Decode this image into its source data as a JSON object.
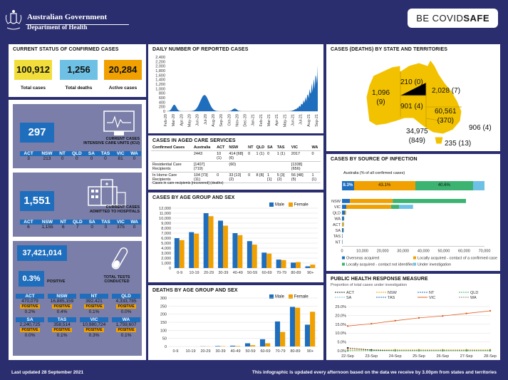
{
  "header": {
    "gov_line1": "Australian Government",
    "gov_line2": "Department of Health",
    "badge_prefix": "BE COVID",
    "badge_suffix": "SAFE"
  },
  "current_status": {
    "title": "CURRENT STATUS OF CONFIRMED CASES",
    "total_cases": "100,912",
    "total_cases_label": "Total cases",
    "total_deaths": "1,256",
    "total_deaths_label": "Total deaths",
    "active_cases": "20,284",
    "active_cases_label": "Active cases",
    "colors": {
      "total": "#f2de3a",
      "deaths": "#6ec1e4",
      "active": "#f0a000"
    }
  },
  "icu": {
    "value": "297",
    "label1": "CURRENT CASES",
    "label2": "INTENSIVE CARE UNITS (ICU)",
    "states": [
      "ACT",
      "NSW",
      "NT",
      "QLD",
      "SA",
      "TAS",
      "VIC",
      "WA"
    ],
    "values": [
      "3",
      "213",
      "0",
      "0",
      "0",
      "0",
      "81",
      "0"
    ]
  },
  "hospital": {
    "value": "1,551",
    "label1": "CURRENT CASES",
    "label2": "ADMITTED TO HOSPITALS",
    "states": [
      "ACT",
      "NSW",
      "NT",
      "QLD",
      "SA",
      "TAS",
      "VIC",
      "WA"
    ],
    "values": [
      "6",
      "1,155",
      "6",
      "7",
      "0",
      "0",
      "375",
      "0"
    ]
  },
  "tests": {
    "value": "37,421,014",
    "positive_pct": "0.3%",
    "positive_label": "POSITIVE",
    "label1": "TOTAL TESTS",
    "label2": "CONDUCTED",
    "positive_tag": "POSITIVE",
    "rows": [
      {
        "states": [
          "ACT",
          "NSW",
          "NT",
          "QLD"
        ],
        "tests": [
          "470,079",
          "16,885,159",
          "392,421",
          "4,333,785"
        ],
        "pct": [
          "0.2%",
          "0.4%",
          "0.1%",
          "0.0%"
        ]
      },
      {
        "states": [
          "SA",
          "TAS",
          "VIC",
          "WA"
        ],
        "tests": [
          "2,240,725",
          "358,514",
          "10,980,724",
          "1,759,607"
        ],
        "pct": [
          "0.0%",
          "0.1%",
          "0.3%",
          "0.1%"
        ]
      }
    ]
  },
  "daily": {
    "title": "DAILY NUMBER OF REPORTED CASES",
    "yticks": [
      "2,400",
      "2,200",
      "2,000",
      "1,800",
      "1,600",
      "1,400",
      "1,200",
      "1,000",
      "800",
      "600",
      "400",
      "200",
      "0"
    ],
    "xticks": [
      "Feb-20",
      "Mar-20",
      "Apr-20",
      "May-20",
      "Jun-20",
      "Jul-20",
      "Aug-20",
      "Sep-20",
      "Oct-20",
      "Nov-20",
      "Dec-20",
      "Jan-21",
      "Feb-21",
      "Mar-21",
      "Apr-21",
      "May-21",
      "Jun-21",
      "Jul-21",
      "Aug-21",
      "Sep-21"
    ]
  },
  "aged": {
    "title": "CASES IN AGED CARE SERVICES",
    "headers": [
      "Confirmed Cases",
      "Australia",
      "ACT",
      "NSW",
      "NT",
      "QLD",
      "SA",
      "TAS",
      "VIC",
      "WA"
    ],
    "rows": [
      [
        "",
        "2443",
        "10 (1)",
        "414 [68] (6)",
        "0",
        "1 (1)",
        "0",
        "1 (1)",
        "2017",
        "0"
      ],
      [
        "Residential Care Recipients",
        "[1407] (719)",
        "",
        "(60)",
        "",
        "",
        "",
        "",
        "[1338] (656)",
        ""
      ],
      [
        "In Home Care Recipients",
        "104 [73] (11)",
        "0",
        "33 [13] (2)",
        "0",
        "8 [8]",
        "1 [1]",
        "5 [3] (2)",
        "56 [48] (5)",
        "1 (1)"
      ]
    ],
    "note": "Cases in care recipients [recovered] (deaths)"
  },
  "age_cases": {
    "title": "CASES BY AGE GROUP AND SEX",
    "legend_male": "Male",
    "legend_female": "Female"
  },
  "age_deaths": {
    "title": "DEATHS BY AGE GROUP AND SEX",
    "legend_male": "Male",
    "legend_female": "Female"
  },
  "states_map": {
    "title": "CASES (DEATHS) BY STATE AND TERRITORIES",
    "wa": "1,096",
    "wa_d": "(9)",
    "nt": "210 (0)",
    "qld": "2,028 (7)",
    "sa": "901 (4)",
    "nsw": "60,561",
    "nsw_d": "(370)",
    "act": "906 (4)",
    "vic": "34,975",
    "vic_d": "(849)",
    "tas": "235 (13)"
  },
  "source": {
    "title": "CASES BY SOURCE OF INFECTION",
    "subtitle": "Australia (% of all confirmed cases)",
    "pct_overseas": "8.3%",
    "pct_contact": "43.1%",
    "pct_unknown": "40.6%",
    "states": [
      "NSW",
      "VIC",
      "QLD",
      "WA",
      "ACT",
      "SA",
      "TAS",
      "NT"
    ],
    "xticks": [
      "0",
      "10,000",
      "20,000",
      "30,000",
      "40,000",
      "50,000",
      "60,000",
      "70,000"
    ],
    "legend": [
      "Overseas acquired",
      "Locally acquired - contact of a confirmed case",
      "Locally acquired - contact not identified",
      "Under investigation"
    ]
  },
  "public_health": {
    "title": "PUBLIC HEALTH RESPONSE MEASURE",
    "subtitle": "Proportion of total cases under investigation",
    "legend": [
      "ACT",
      "NSW",
      "NT",
      "QLD",
      "SA",
      "TAS",
      "VIC",
      "WA"
    ],
    "yticks": [
      "25.0%",
      "20.0%",
      "15.0%",
      "10.0%",
      "5.0%",
      "0.0%"
    ],
    "xticks": [
      "22-Sep",
      "23-Sep",
      "24-Sep",
      "25-Sep",
      "26-Sep",
      "27-Sep",
      "28-Sep"
    ]
  },
  "footer": {
    "left": "Last updated 28 September 2021",
    "right": "This infographic is updated every afternoon based on the data we receive by 3.00pm from states and territories"
  },
  "chart_data": [
    {
      "type": "bar",
      "title": "CASES BY AGE GROUP AND SEX",
      "categories": [
        "0-9",
        "10-19",
        "20-29",
        "30-39",
        "40-49",
        "50-59",
        "60-69",
        "70-79",
        "80-89",
        "90+"
      ],
      "ylim": [
        0,
        12000
      ],
      "series": [
        {
          "name": "Male",
          "values": [
            6000,
            7200,
            11000,
            9500,
            7000,
            5400,
            3100,
            1700,
            1100,
            350
          ]
        },
        {
          "name": "Female",
          "values": [
            5600,
            6900,
            10400,
            8500,
            6600,
            4700,
            2900,
            1600,
            1200,
            700
          ]
        }
      ]
    },
    {
      "type": "bar",
      "title": "DEATHS BY AGE GROUP AND SEX",
      "categories": [
        "0-9",
        "10-19",
        "20-29",
        "30-39",
        "40-49",
        "50-59",
        "60-69",
        "70-79",
        "80-89",
        "90+"
      ],
      "ylim": [
        0,
        300
      ],
      "series": [
        {
          "name": "Male",
          "values": [
            0,
            0,
            1,
            3,
            5,
            20,
            45,
            155,
            245,
            135
          ]
        },
        {
          "name": "Female",
          "values": [
            0,
            0,
            1,
            2,
            3,
            8,
            20,
            90,
            240,
            215
          ]
        }
      ]
    },
    {
      "type": "bar",
      "title": "CASES BY SOURCE OF INFECTION",
      "categories": [
        "NSW",
        "VIC",
        "QLD",
        "WA",
        "ACT",
        "SA",
        "TAS",
        "NT"
      ],
      "xlim": [
        0,
        70000
      ],
      "series": [
        {
          "name": "Overseas acquired",
          "values": [
            3900,
            2100,
            1500,
            1000,
            100,
            700,
            180,
            200
          ]
        },
        {
          "name": "Locally acquired - contact of a confirmed case",
          "values": [
            21000,
            22000,
            400,
            80,
            600,
            150,
            50,
            10
          ]
        },
        {
          "name": "Locally acquired - contact not identified",
          "values": [
            36000,
            4000,
            100,
            10,
            200,
            50,
            5,
            0
          ]
        },
        {
          "name": "Under investigation",
          "values": [
            0,
            6800,
            0,
            0,
            0,
            0,
            0,
            0
          ]
        }
      ]
    },
    {
      "type": "line",
      "title": "PUBLIC HEALTH RESPONSE MEASURE",
      "x": [
        "22-Sep",
        "23-Sep",
        "24-Sep",
        "25-Sep",
        "26-Sep",
        "27-Sep",
        "28-Sep"
      ],
      "ylim": [
        0,
        25
      ],
      "series": [
        {
          "name": "VIC",
          "values": [
            14.0,
            15.3,
            17.0,
            18.6,
            19.7,
            21.1,
            22.6
          ]
        },
        {
          "name": "NSW",
          "values": [
            0.5,
            0.5,
            0.5,
            0.5,
            0.5,
            0.5,
            0.5
          ]
        },
        {
          "name": "ACT",
          "values": [
            1.6,
            0.4,
            0.1,
            0.1,
            0.1,
            0.1,
            0.1
          ]
        },
        {
          "name": "QLD",
          "values": [
            0,
            0,
            0,
            0,
            0,
            0,
            0
          ]
        }
      ]
    }
  ]
}
